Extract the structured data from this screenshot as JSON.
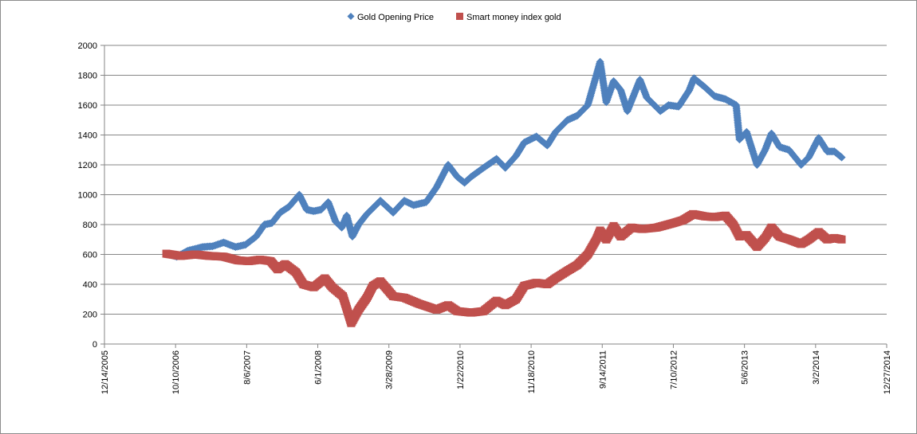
{
  "chart_data": {
    "type": "scatter",
    "xlim": [
      "2005-12-14",
      "2014-12-27"
    ],
    "ylim": [
      0,
      2000
    ],
    "y_ticks": [
      0,
      200,
      400,
      600,
      800,
      1000,
      1200,
      1400,
      1600,
      1800,
      2000
    ],
    "x_ticks": [
      "12/14/2005",
      "10/10/2006",
      "8/6/2007",
      "6/1/2008",
      "3/28/2009",
      "1/22/2010",
      "11/18/2010",
      "9/14/2011",
      "7/10/2012",
      "5/6/2013",
      "3/2/2014",
      "12/27/2014"
    ],
    "x_tick_dates": [
      "2005-12-14",
      "2006-10-10",
      "2007-08-06",
      "2008-06-01",
      "2009-03-28",
      "2010-01-22",
      "2010-11-18",
      "2011-09-14",
      "2012-07-10",
      "2013-05-06",
      "2014-03-02",
      "2014-12-27"
    ],
    "grid": "horizontal",
    "legend_position": "top-center",
    "series": [
      {
        "name": "Gold Opening Price",
        "color": "#4f81bd",
        "marker": "diamond",
        "points": [
          [
            "2006-09-01",
            605
          ],
          [
            "2006-10-15",
            585
          ],
          [
            "2006-12-01",
            625
          ],
          [
            "2007-02-01",
            650
          ],
          [
            "2007-03-15",
            655
          ],
          [
            "2007-05-01",
            680
          ],
          [
            "2007-06-20",
            650
          ],
          [
            "2007-08-01",
            665
          ],
          [
            "2007-09-15",
            720
          ],
          [
            "2007-10-20",
            800
          ],
          [
            "2007-11-20",
            810
          ],
          [
            "2007-12-25",
            880
          ],
          [
            "2008-02-01",
            920
          ],
          [
            "2008-03-15",
            1000
          ],
          [
            "2008-04-15",
            900
          ],
          [
            "2008-05-15",
            890
          ],
          [
            "2008-06-15",
            900
          ],
          [
            "2008-07-15",
            950
          ],
          [
            "2008-08-15",
            820
          ],
          [
            "2008-09-10",
            780
          ],
          [
            "2008-10-01",
            860
          ],
          [
            "2008-10-25",
            720
          ],
          [
            "2008-11-20",
            800
          ],
          [
            "2008-12-25",
            870
          ],
          [
            "2009-02-20",
            960
          ],
          [
            "2009-04-15",
            880
          ],
          [
            "2009-06-01",
            960
          ],
          [
            "2009-07-10",
            930
          ],
          [
            "2009-09-01",
            950
          ],
          [
            "2009-10-15",
            1050
          ],
          [
            "2009-12-03",
            1200
          ],
          [
            "2010-01-10",
            1120
          ],
          [
            "2010-02-10",
            1080
          ],
          [
            "2010-03-10",
            1120
          ],
          [
            "2010-05-01",
            1180
          ],
          [
            "2010-06-25",
            1240
          ],
          [
            "2010-08-01",
            1180
          ],
          [
            "2010-09-15",
            1260
          ],
          [
            "2010-10-20",
            1350
          ],
          [
            "2010-12-10",
            1390
          ],
          [
            "2011-01-25",
            1330
          ],
          [
            "2011-03-01",
            1420
          ],
          [
            "2011-04-20",
            1500
          ],
          [
            "2011-06-01",
            1530
          ],
          [
            "2011-07-15",
            1600
          ],
          [
            "2011-08-20",
            1800
          ],
          [
            "2011-09-05",
            1890
          ],
          [
            "2011-10-01",
            1620
          ],
          [
            "2011-11-01",
            1760
          ],
          [
            "2011-12-01",
            1700
          ],
          [
            "2011-12-29",
            1560
          ],
          [
            "2012-02-20",
            1770
          ],
          [
            "2012-03-20",
            1650
          ],
          [
            "2012-05-16",
            1560
          ],
          [
            "2012-06-20",
            1600
          ],
          [
            "2012-08-01",
            1590
          ],
          [
            "2012-09-15",
            1700
          ],
          [
            "2012-10-05",
            1780
          ],
          [
            "2012-11-20",
            1720
          ],
          [
            "2012-12-31",
            1660
          ],
          [
            "2013-02-15",
            1640
          ],
          [
            "2013-04-01",
            1600
          ],
          [
            "2013-04-15",
            1370
          ],
          [
            "2013-05-15",
            1420
          ],
          [
            "2013-06-28",
            1200
          ],
          [
            "2013-08-01",
            1300
          ],
          [
            "2013-08-28",
            1410
          ],
          [
            "2013-10-01",
            1320
          ],
          [
            "2013-11-10",
            1300
          ],
          [
            "2013-12-31",
            1200
          ],
          [
            "2014-02-01",
            1250
          ],
          [
            "2014-03-15",
            1380
          ],
          [
            "2014-04-20",
            1290
          ],
          [
            "2014-05-20",
            1290
          ],
          [
            "2014-06-20",
            1250
          ]
        ]
      },
      {
        "name": "Smart money index gold",
        "color": "#c0504d",
        "marker": "square",
        "points": [
          [
            "2006-09-01",
            605
          ],
          [
            "2006-11-01",
            590
          ],
          [
            "2007-01-01",
            600
          ],
          [
            "2007-03-01",
            590
          ],
          [
            "2007-05-01",
            585
          ],
          [
            "2007-07-01",
            560
          ],
          [
            "2007-08-15",
            555
          ],
          [
            "2007-10-01",
            565
          ],
          [
            "2007-11-15",
            555
          ],
          [
            "2007-12-15",
            500
          ],
          [
            "2008-01-15",
            535
          ],
          [
            "2008-03-01",
            480
          ],
          [
            "2008-04-01",
            400
          ],
          [
            "2008-05-15",
            380
          ],
          [
            "2008-07-01",
            440
          ],
          [
            "2008-08-01",
            380
          ],
          [
            "2008-09-15",
            320
          ],
          [
            "2008-10-20",
            140
          ],
          [
            "2008-11-20",
            230
          ],
          [
            "2008-12-25",
            310
          ],
          [
            "2009-01-20",
            390
          ],
          [
            "2009-02-20",
            420
          ],
          [
            "2009-04-15",
            320
          ],
          [
            "2009-06-01",
            310
          ],
          [
            "2009-08-01",
            270
          ],
          [
            "2009-10-15",
            230
          ],
          [
            "2009-12-03",
            260
          ],
          [
            "2010-01-10",
            220
          ],
          [
            "2010-03-10",
            210
          ],
          [
            "2010-05-01",
            220
          ],
          [
            "2010-06-25",
            290
          ],
          [
            "2010-08-01",
            260
          ],
          [
            "2010-09-15",
            300
          ],
          [
            "2010-10-20",
            390
          ],
          [
            "2010-12-10",
            410
          ],
          [
            "2011-01-25",
            400
          ],
          [
            "2011-03-01",
            440
          ],
          [
            "2011-04-20",
            490
          ],
          [
            "2011-06-01",
            530
          ],
          [
            "2011-07-15",
            600
          ],
          [
            "2011-08-20",
            700
          ],
          [
            "2011-09-05",
            760
          ],
          [
            "2011-10-01",
            700
          ],
          [
            "2011-11-01",
            790
          ],
          [
            "2011-12-01",
            720
          ],
          [
            "2012-01-15",
            780
          ],
          [
            "2012-03-01",
            770
          ],
          [
            "2012-05-01",
            780
          ],
          [
            "2012-07-10",
            810
          ],
          [
            "2012-08-20",
            830
          ],
          [
            "2012-10-01",
            870
          ],
          [
            "2012-11-20",
            855
          ],
          [
            "2012-12-31",
            850
          ],
          [
            "2013-02-15",
            860
          ],
          [
            "2013-03-20",
            800
          ],
          [
            "2013-04-15",
            720
          ],
          [
            "2013-05-15",
            730
          ],
          [
            "2013-06-28",
            650
          ],
          [
            "2013-08-01",
            710
          ],
          [
            "2013-08-28",
            780
          ],
          [
            "2013-10-01",
            720
          ],
          [
            "2013-11-10",
            700
          ],
          [
            "2013-12-31",
            670
          ],
          [
            "2014-02-01",
            700
          ],
          [
            "2014-03-15",
            750
          ],
          [
            "2014-04-20",
            700
          ],
          [
            "2014-05-20",
            710
          ],
          [
            "2014-06-20",
            700
          ]
        ]
      }
    ]
  }
}
